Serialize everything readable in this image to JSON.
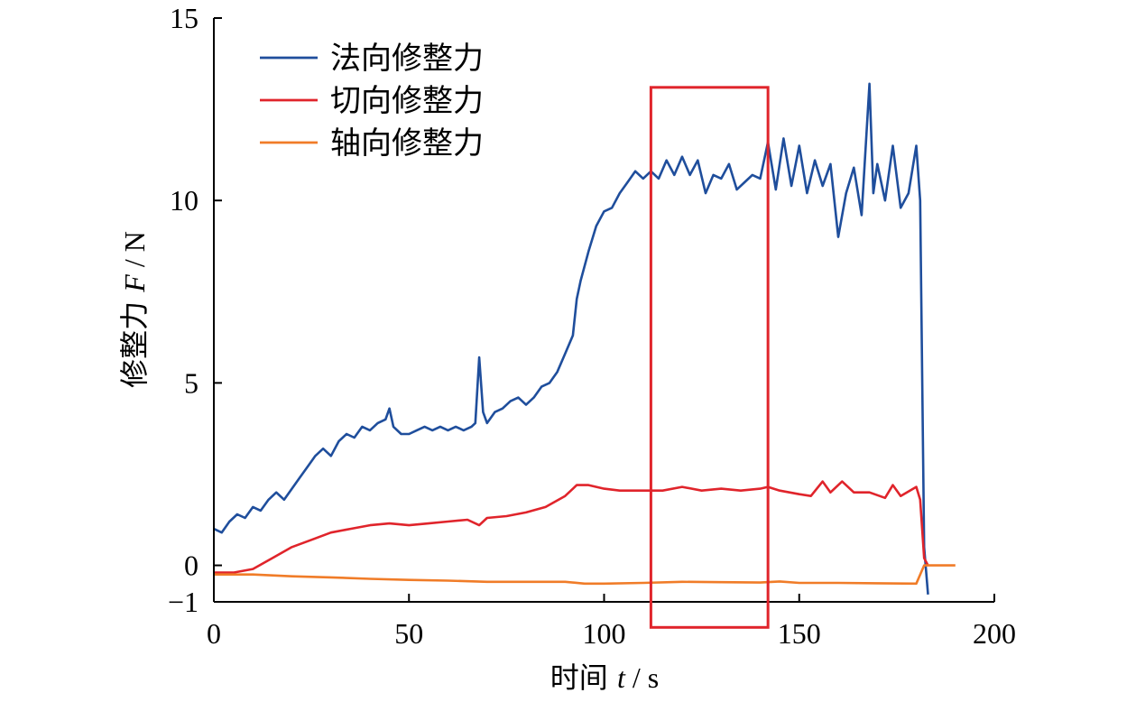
{
  "chart_data": {
    "type": "line",
    "title": "",
    "xlabel": "时间",
    "xlabel_var": "t",
    "xlabel_unit": "s",
    "ylabel": "修整力",
    "ylabel_var": "F",
    "ylabel_unit": "N",
    "xlim": [
      0,
      200
    ],
    "ylim": [
      -1,
      15
    ],
    "xticks": [
      0,
      50,
      100,
      150,
      200
    ],
    "yticks": [
      -1,
      0,
      5,
      10,
      15
    ],
    "ytick_labels": [
      "−1",
      "0",
      "5",
      "10",
      "15"
    ],
    "grid": false,
    "legend_position": "top-left",
    "highlight_region": {
      "x": [
        112,
        142
      ],
      "y": [
        -1.7,
        13.1
      ],
      "color": "#e0242b"
    },
    "series": [
      {
        "name": "法向修整力",
        "color": "#1f4e9c",
        "points": [
          [
            0,
            1.0
          ],
          [
            2,
            0.9
          ],
          [
            4,
            1.2
          ],
          [
            6,
            1.4
          ],
          [
            8,
            1.3
          ],
          [
            10,
            1.6
          ],
          [
            12,
            1.5
          ],
          [
            14,
            1.8
          ],
          [
            16,
            2.0
          ],
          [
            18,
            1.8
          ],
          [
            20,
            2.1
          ],
          [
            22,
            2.4
          ],
          [
            24,
            2.7
          ],
          [
            26,
            3.0
          ],
          [
            28,
            3.2
          ],
          [
            30,
            3.0
          ],
          [
            32,
            3.4
          ],
          [
            34,
            3.6
          ],
          [
            36,
            3.5
          ],
          [
            38,
            3.8
          ],
          [
            40,
            3.7
          ],
          [
            42,
            3.9
          ],
          [
            44,
            4.0
          ],
          [
            45,
            4.3
          ],
          [
            46,
            3.8
          ],
          [
            48,
            3.6
          ],
          [
            50,
            3.6
          ],
          [
            52,
            3.7
          ],
          [
            54,
            3.8
          ],
          [
            56,
            3.7
          ],
          [
            58,
            3.8
          ],
          [
            60,
            3.7
          ],
          [
            62,
            3.8
          ],
          [
            64,
            3.7
          ],
          [
            66,
            3.8
          ],
          [
            67,
            3.9
          ],
          [
            68,
            5.7
          ],
          [
            69,
            4.2
          ],
          [
            70,
            3.9
          ],
          [
            72,
            4.2
          ],
          [
            74,
            4.3
          ],
          [
            76,
            4.5
          ],
          [
            78,
            4.6
          ],
          [
            80,
            4.4
          ],
          [
            82,
            4.6
          ],
          [
            84,
            4.9
          ],
          [
            86,
            5.0
          ],
          [
            88,
            5.3
          ],
          [
            90,
            5.8
          ],
          [
            92,
            6.3
          ],
          [
            93,
            7.3
          ],
          [
            94,
            7.8
          ],
          [
            96,
            8.6
          ],
          [
            98,
            9.3
          ],
          [
            100,
            9.7
          ],
          [
            102,
            9.8
          ],
          [
            104,
            10.2
          ],
          [
            106,
            10.5
          ],
          [
            108,
            10.8
          ],
          [
            110,
            10.6
          ],
          [
            112,
            10.8
          ],
          [
            114,
            10.6
          ],
          [
            116,
            11.1
          ],
          [
            118,
            10.7
          ],
          [
            120,
            11.2
          ],
          [
            122,
            10.7
          ],
          [
            124,
            11.1
          ],
          [
            126,
            10.2
          ],
          [
            128,
            10.7
          ],
          [
            130,
            10.6
          ],
          [
            132,
            11.0
          ],
          [
            134,
            10.3
          ],
          [
            136,
            10.5
          ],
          [
            138,
            10.7
          ],
          [
            140,
            10.6
          ],
          [
            142,
            11.6
          ],
          [
            144,
            10.3
          ],
          [
            146,
            11.7
          ],
          [
            148,
            10.4
          ],
          [
            150,
            11.5
          ],
          [
            152,
            10.2
          ],
          [
            154,
            11.1
          ],
          [
            156,
            10.4
          ],
          [
            158,
            11.0
          ],
          [
            160,
            9.0
          ],
          [
            162,
            10.2
          ],
          [
            164,
            10.9
          ],
          [
            166,
            9.6
          ],
          [
            168,
            13.2
          ],
          [
            169,
            10.2
          ],
          [
            170,
            11.0
          ],
          [
            172,
            10.0
          ],
          [
            174,
            11.5
          ],
          [
            176,
            9.8
          ],
          [
            178,
            10.2
          ],
          [
            180,
            11.5
          ],
          [
            181,
            10.0
          ],
          [
            182,
            0.5
          ],
          [
            183,
            -0.8
          ]
        ]
      },
      {
        "name": "切向修整力",
        "color": "#e0242b",
        "points": [
          [
            0,
            -0.2
          ],
          [
            5,
            -0.2
          ],
          [
            10,
            -0.1
          ],
          [
            15,
            0.2
          ],
          [
            20,
            0.5
          ],
          [
            25,
            0.7
          ],
          [
            30,
            0.9
          ],
          [
            35,
            1.0
          ],
          [
            40,
            1.1
          ],
          [
            45,
            1.15
          ],
          [
            50,
            1.1
          ],
          [
            55,
            1.15
          ],
          [
            60,
            1.2
          ],
          [
            65,
            1.25
          ],
          [
            68,
            1.1
          ],
          [
            70,
            1.3
          ],
          [
            75,
            1.35
          ],
          [
            80,
            1.45
          ],
          [
            85,
            1.6
          ],
          [
            90,
            1.9
          ],
          [
            93,
            2.2
          ],
          [
            96,
            2.2
          ],
          [
            100,
            2.1
          ],
          [
            104,
            2.05
          ],
          [
            110,
            2.05
          ],
          [
            115,
            2.05
          ],
          [
            120,
            2.15
          ],
          [
            125,
            2.05
          ],
          [
            130,
            2.1
          ],
          [
            135,
            2.05
          ],
          [
            140,
            2.1
          ],
          [
            142,
            2.15
          ],
          [
            145,
            2.05
          ],
          [
            150,
            1.95
          ],
          [
            153,
            1.9
          ],
          [
            156,
            2.3
          ],
          [
            158,
            2.0
          ],
          [
            161,
            2.3
          ],
          [
            164,
            2.0
          ],
          [
            168,
            2.0
          ],
          [
            172,
            1.85
          ],
          [
            174,
            2.2
          ],
          [
            176,
            1.9
          ],
          [
            180,
            2.15
          ],
          [
            181,
            1.8
          ],
          [
            182,
            0.2
          ],
          [
            183,
            0.0
          ]
        ]
      },
      {
        "name": "轴向修整力",
        "color": "#f07c28",
        "points": [
          [
            0,
            -0.25
          ],
          [
            10,
            -0.25
          ],
          [
            20,
            -0.3
          ],
          [
            30,
            -0.33
          ],
          [
            40,
            -0.37
          ],
          [
            50,
            -0.4
          ],
          [
            60,
            -0.42
          ],
          [
            70,
            -0.45
          ],
          [
            80,
            -0.45
          ],
          [
            90,
            -0.45
          ],
          [
            95,
            -0.5
          ],
          [
            100,
            -0.5
          ],
          [
            110,
            -0.48
          ],
          [
            120,
            -0.45
          ],
          [
            130,
            -0.46
          ],
          [
            140,
            -0.47
          ],
          [
            145,
            -0.44
          ],
          [
            150,
            -0.48
          ],
          [
            160,
            -0.48
          ],
          [
            170,
            -0.49
          ],
          [
            180,
            -0.5
          ],
          [
            182,
            0.0
          ],
          [
            185,
            0.0
          ],
          [
            190,
            0.0
          ]
        ]
      }
    ]
  }
}
